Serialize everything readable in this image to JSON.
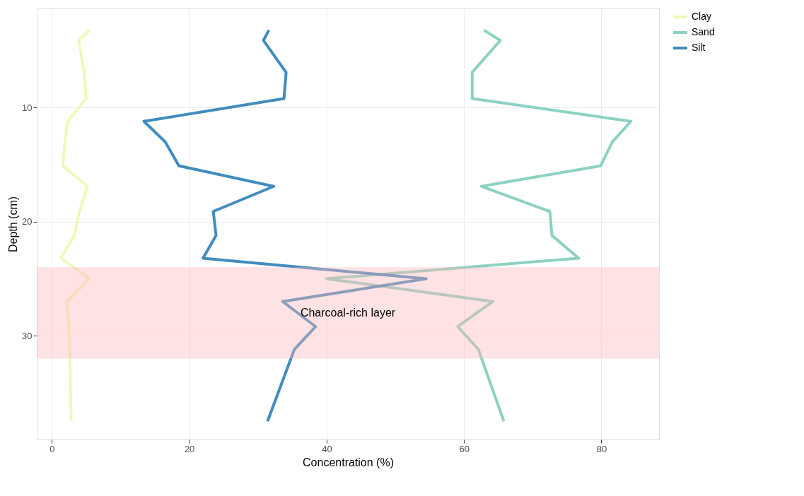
{
  "chart_data": {
    "type": "line",
    "xlabel": "Concentration (%)",
    "ylabel": "Depth (cm)",
    "xlim": [
      -2.2,
      88.4
    ],
    "ylim": [
      39.1,
      1.3
    ],
    "xticks": [
      0,
      20,
      40,
      60,
      80
    ],
    "yticks": [
      10,
      20,
      30
    ],
    "grid": true,
    "legend": "right",
    "line_style": "solid",
    "marker": "none",
    "series": [
      {
        "name": "Clay",
        "color": "#edf8b1",
        "x": [
          5.5,
          3.9,
          4.7,
          5.0,
          2.3,
          1.9,
          1.6,
          5.2,
          4.0,
          3.3,
          1.3,
          5.5,
          2.2,
          2.5,
          2.6,
          2.8
        ],
        "values": [
          3.2,
          4.1,
          6.9,
          9.2,
          11.2,
          13.0,
          15.1,
          16.9,
          19.1,
          21.2,
          23.2,
          25.0,
          27.0,
          29.2,
          31.2,
          37.5
        ]
      },
      {
        "name": "Sand",
        "color": "#7fcdbb",
        "x": [
          62.9,
          65.3,
          61.2,
          61.2,
          84.3,
          81.6,
          79.9,
          62.5,
          72.5,
          72.8,
          76.7,
          40.0,
          64.2,
          59.1,
          62.1,
          65.8
        ],
        "values": [
          3.2,
          4.1,
          6.9,
          9.2,
          11.2,
          13.0,
          15.1,
          16.9,
          19.1,
          21.2,
          23.2,
          25.0,
          27.0,
          29.2,
          31.2,
          37.5
        ]
      },
      {
        "name": "Silt",
        "color": "#2c7fb8",
        "x": [
          31.6,
          30.8,
          34.1,
          33.8,
          13.4,
          16.5,
          18.5,
          32.3,
          23.5,
          23.9,
          22.0,
          54.5,
          33.6,
          38.4,
          35.3,
          31.4
        ],
        "values": [
          3.2,
          4.1,
          6.9,
          9.2,
          11.2,
          13.0,
          15.1,
          16.9,
          19.1,
          21.2,
          23.2,
          25.0,
          27.0,
          29.2,
          31.2,
          37.5
        ]
      }
    ],
    "bands": [
      {
        "axis": "y",
        "from": 24,
        "to": 32,
        "color": "#ffb6b9",
        "label": "Charcoal-rich layer"
      }
    ]
  }
}
